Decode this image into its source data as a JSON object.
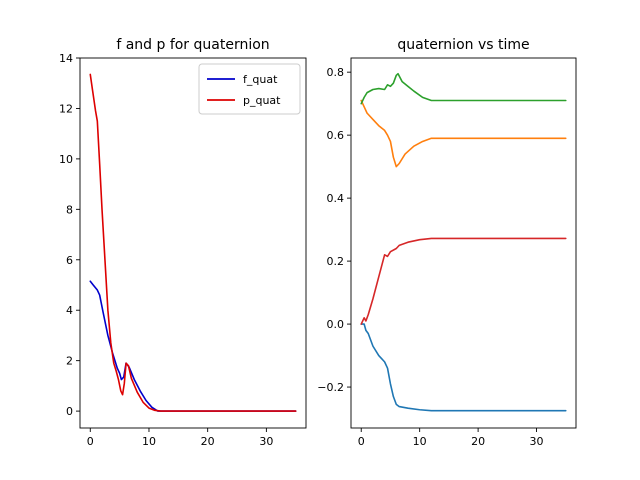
{
  "chart_data": [
    {
      "type": "line",
      "title": "f and p for quaternion",
      "xlabel": "",
      "ylabel": "",
      "xlim": [
        -1.75,
        36.75
      ],
      "ylim": [
        -0.67,
        14.0
      ],
      "xticks": [
        0,
        10,
        20,
        30
      ],
      "yticks": [
        0,
        2,
        4,
        6,
        8,
        10,
        12,
        14
      ],
      "grid": false,
      "legend": {
        "placement": "top-right"
      },
      "series": [
        {
          "name": "f_quat",
          "color": "#0000cc",
          "points": [
            [
              0,
              5.15
            ],
            [
              0.5,
              5.0
            ],
            [
              1.2,
              4.8
            ],
            [
              1.6,
              4.6
            ],
            [
              2.2,
              3.9
            ],
            [
              3.0,
              3.0
            ],
            [
              3.8,
              2.3
            ],
            [
              4.6,
              1.7
            ],
            [
              5.0,
              1.5
            ],
            [
              5.3,
              1.25
            ],
            [
              5.7,
              1.35
            ],
            [
              6.1,
              1.9
            ],
            [
              6.6,
              1.75
            ],
            [
              7.5,
              1.25
            ],
            [
              8.5,
              0.8
            ],
            [
              9.5,
              0.42
            ],
            [
              10.5,
              0.15
            ],
            [
              11.5,
              0.0
            ],
            [
              12,
              0.0
            ],
            [
              20,
              0.0
            ],
            [
              30,
              0.0
            ],
            [
              35,
              0.0
            ]
          ]
        },
        {
          "name": "p_quat",
          "color": "#dd0000",
          "points": [
            [
              0,
              13.35
            ],
            [
              0.4,
              12.7
            ],
            [
              0.9,
              11.9
            ],
            [
              1.2,
              11.5
            ],
            [
              1.6,
              9.8
            ],
            [
              2.0,
              8.0
            ],
            [
              2.5,
              6.0
            ],
            [
              3.0,
              4.0
            ],
            [
              3.5,
              2.7
            ],
            [
              4.0,
              1.9
            ],
            [
              4.4,
              1.6
            ],
            [
              4.8,
              1.25
            ],
            [
              5.2,
              0.8
            ],
            [
              5.5,
              0.65
            ],
            [
              5.8,
              1.1
            ],
            [
              6.1,
              1.9
            ],
            [
              6.5,
              1.8
            ],
            [
              7.0,
              1.3
            ],
            [
              8.0,
              0.75
            ],
            [
              9.0,
              0.35
            ],
            [
              10.0,
              0.12
            ],
            [
              11.0,
              0.03
            ],
            [
              12.0,
              0.0
            ],
            [
              20,
              0.0
            ],
            [
              30,
              0.0
            ],
            [
              35,
              0.0
            ]
          ]
        }
      ]
    },
    {
      "type": "line",
      "title": "quaternion vs time",
      "xlabel": "",
      "ylabel": "",
      "xlim": [
        -1.75,
        36.75
      ],
      "ylim": [
        -0.33,
        0.845
      ],
      "xticks": [
        0,
        10,
        20,
        30
      ],
      "yticks": [
        -0.2,
        0.0,
        0.2,
        0.4,
        0.6,
        0.8
      ],
      "yticklabels": [
        "−0.2",
        "0.0",
        "0.2",
        "0.4",
        "0.6",
        "0.8"
      ],
      "grid": false,
      "series": [
        {
          "color": "#1f77b4",
          "points": [
            [
              0,
              0.0
            ],
            [
              0.5,
              0.0
            ],
            [
              0.8,
              -0.02
            ],
            [
              1.2,
              -0.03
            ],
            [
              2,
              -0.07
            ],
            [
              3,
              -0.1
            ],
            [
              4,
              -0.12
            ],
            [
              4.5,
              -0.14
            ],
            [
              5.0,
              -0.19
            ],
            [
              5.5,
              -0.23
            ],
            [
              6.0,
              -0.255
            ],
            [
              6.5,
              -0.262
            ],
            [
              8,
              -0.267
            ],
            [
              10,
              -0.272
            ],
            [
              12,
              -0.275
            ],
            [
              20,
              -0.275
            ],
            [
              30,
              -0.275
            ],
            [
              35,
              -0.275
            ]
          ]
        },
        {
          "color": "#ff7f0e",
          "points": [
            [
              0,
              0.71
            ],
            [
              0.5,
              0.69
            ],
            [
              1,
              0.67
            ],
            [
              2,
              0.65
            ],
            [
              3,
              0.63
            ],
            [
              4,
              0.615
            ],
            [
              4.5,
              0.6
            ],
            [
              5.0,
              0.58
            ],
            [
              5.5,
              0.53
            ],
            [
              6.0,
              0.5
            ],
            [
              6.5,
              0.51
            ],
            [
              7.5,
              0.54
            ],
            [
              9,
              0.565
            ],
            [
              10.5,
              0.58
            ],
            [
              12,
              0.59
            ],
            [
              20,
              0.59
            ],
            [
              30,
              0.59
            ],
            [
              35,
              0.59
            ]
          ]
        },
        {
          "color": "#2ca02c",
          "points": [
            [
              0,
              0.7
            ],
            [
              0.5,
              0.72
            ],
            [
              1,
              0.735
            ],
            [
              2,
              0.745
            ],
            [
              3,
              0.748
            ],
            [
              4,
              0.745
            ],
            [
              4.5,
              0.76
            ],
            [
              5.0,
              0.755
            ],
            [
              5.5,
              0.765
            ],
            [
              6.0,
              0.79
            ],
            [
              6.3,
              0.795
            ],
            [
              7.0,
              0.77
            ],
            [
              8,
              0.755
            ],
            [
              9,
              0.74
            ],
            [
              10.5,
              0.72
            ],
            [
              12,
              0.71
            ],
            [
              20,
              0.71
            ],
            [
              30,
              0.71
            ],
            [
              35,
              0.71
            ]
          ]
        },
        {
          "color": "#d62728",
          "points": [
            [
              0,
              0.0
            ],
            [
              0.5,
              0.02
            ],
            [
              0.8,
              0.01
            ],
            [
              1.2,
              0.03
            ],
            [
              2,
              0.08
            ],
            [
              3,
              0.15
            ],
            [
              4,
              0.22
            ],
            [
              4.5,
              0.215
            ],
            [
              5,
              0.23
            ],
            [
              6,
              0.24
            ],
            [
              6.5,
              0.25
            ],
            [
              8,
              0.26
            ],
            [
              10,
              0.268
            ],
            [
              12,
              0.272
            ],
            [
              20,
              0.272
            ],
            [
              30,
              0.272
            ],
            [
              35,
              0.272
            ]
          ]
        }
      ]
    }
  ]
}
